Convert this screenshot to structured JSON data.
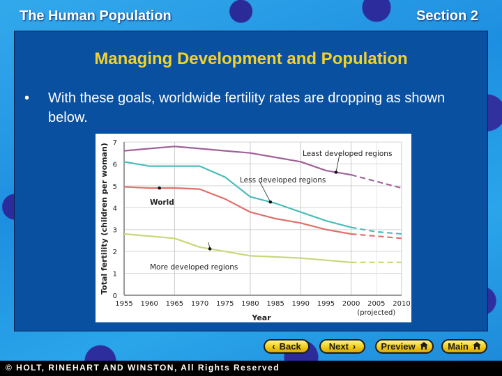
{
  "header": {
    "chapter_title": "The Human Population",
    "section": "Section 2"
  },
  "slide": {
    "title": "Managing Development and Population",
    "bullet_symbol": "•",
    "bullet_text": "With these goals, worldwide fertility rates are dropping as shown below."
  },
  "nav": {
    "back_label": "Back",
    "next_label": "Next",
    "preview_label": "Preview",
    "main_label": "Main",
    "back_icon": "chevron-left-icon",
    "next_icon": "chevron-right-icon",
    "preview_icon": "home-icon",
    "main_icon": "home-icon",
    "button_color": "#f2cc17"
  },
  "footer": {
    "copyright": "© HOLT, RINEHART AND WINSTON, All Rights Reserved"
  },
  "colors": {
    "panel": "#0a50a0",
    "title": "#f2d22a",
    "least": "#a0609a",
    "less": "#4bbcbc",
    "world": "#e0706a",
    "more": "#c8d87a"
  },
  "chart_data": {
    "type": "line",
    "title": "",
    "xlabel": "Year",
    "xlabel_note": "(projected)",
    "ylabel": "Total fertility (children per woman)",
    "x": [
      1955,
      1960,
      1965,
      1970,
      1975,
      1980,
      1985,
      1990,
      1995,
      2000,
      2005,
      2010
    ],
    "x_ticks": [
      "1955",
      "1960",
      "1965",
      "1970",
      "1975",
      "1980",
      "1985",
      "1990",
      "1995",
      "2000",
      "2005",
      "2010"
    ],
    "y_ticks": [
      "0",
      "1",
      "2",
      "3",
      "4",
      "5",
      "6",
      "7"
    ],
    "ylim": [
      0,
      7
    ],
    "xlim": [
      1955,
      2010
    ],
    "grid": true,
    "projected_from": 2000,
    "series": [
      {
        "name": "Least developed regions",
        "color": "#a0609a",
        "values": [
          6.6,
          6.7,
          6.8,
          6.7,
          6.6,
          6.5,
          6.3,
          6.1,
          5.7,
          5.5,
          5.2,
          4.9
        ]
      },
      {
        "name": "Less developed regions",
        "color": "#4bbcbc",
        "values": [
          6.1,
          5.9,
          5.9,
          5.9,
          5.4,
          4.5,
          4.2,
          3.8,
          3.4,
          3.1,
          2.9,
          2.8
        ]
      },
      {
        "name": "World",
        "color": "#e0706a",
        "values": [
          4.95,
          4.9,
          4.9,
          4.85,
          4.4,
          3.8,
          3.5,
          3.3,
          3.0,
          2.8,
          2.7,
          2.6
        ]
      },
      {
        "name": "More developed regions",
        "color": "#c8d87a",
        "values": [
          2.8,
          2.7,
          2.6,
          2.2,
          2.0,
          1.8,
          1.75,
          1.7,
          1.6,
          1.5,
          1.5,
          1.5
        ]
      }
    ],
    "annotations": [
      {
        "text": "Least developed regions",
        "points_to_year": 1997
      },
      {
        "text": "Less developed regions",
        "points_to_year": 1984
      },
      {
        "text": "World",
        "points_to_year": 1962
      },
      {
        "text": "More developed regions",
        "points_to_year": 1972
      }
    ]
  }
}
